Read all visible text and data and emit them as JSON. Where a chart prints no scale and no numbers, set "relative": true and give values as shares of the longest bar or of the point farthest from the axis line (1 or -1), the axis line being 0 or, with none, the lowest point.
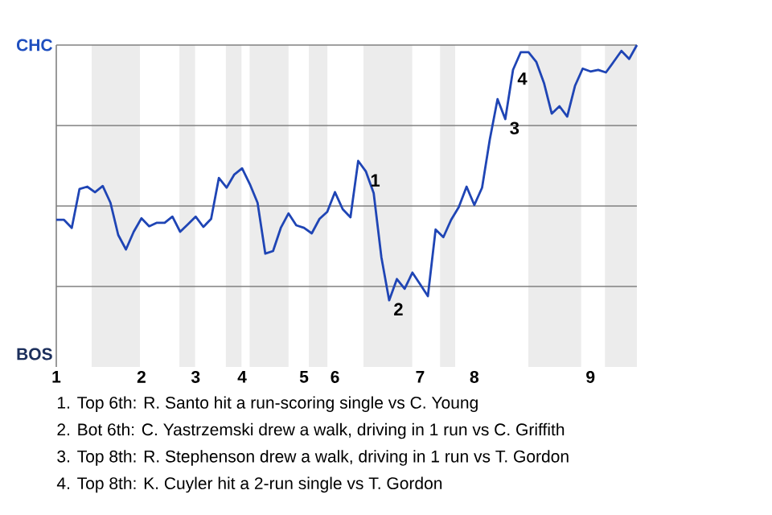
{
  "chart_data": {
    "type": "line",
    "relative": true,
    "categories": [
      "1",
      null,
      null,
      null,
      null,
      null,
      null,
      null,
      null,
      null,
      null,
      "2",
      null,
      null,
      null,
      null,
      null,
      null,
      "3",
      null,
      null,
      null,
      null,
      null,
      "4",
      null,
      null,
      null,
      null,
      null,
      null,
      null,
      "5",
      null,
      null,
      null,
      "6",
      null,
      null,
      null,
      null,
      null,
      null,
      null,
      null,
      null,
      null,
      "7",
      null,
      null,
      null,
      null,
      null,
      null,
      "8",
      null,
      null,
      null,
      null,
      null,
      null,
      null,
      null,
      null,
      null,
      null,
      null,
      null,
      null,
      "9",
      null,
      null,
      null,
      null,
      null,
      null
    ],
    "series": [
      {
        "color": "#1f45b5",
        "values": [
          0.457,
          0.457,
          0.432,
          0.553,
          0.56,
          0.543,
          0.562,
          0.51,
          0.41,
          0.365,
          0.42,
          0.462,
          0.437,
          0.448,
          0.448,
          0.467,
          0.42,
          0.443,
          0.467,
          0.435,
          0.46,
          0.587,
          0.557,
          0.598,
          0.617,
          0.568,
          0.51,
          0.352,
          0.36,
          0.432,
          0.477,
          0.44,
          0.432,
          0.415,
          0.46,
          0.482,
          0.543,
          0.49,
          0.465,
          0.64,
          0.607,
          0.54,
          0.34,
          0.207,
          0.273,
          0.243,
          0.293,
          0.257,
          0.22,
          0.427,
          0.403,
          0.457,
          0.497,
          0.56,
          0.503,
          0.557,
          0.707,
          0.832,
          0.77,
          0.923,
          0.978,
          0.978,
          0.948,
          0.882,
          0.787,
          0.81,
          0.778,
          0.873,
          0.927,
          0.918,
          0.923,
          0.915,
          0.948,
          0.982,
          0.957,
          1
        ]
      }
    ],
    "ref_lines": [
      {
        "axis": "y",
        "value": 0.25,
        "color": "#808080"
      },
      {
        "axis": "y",
        "value": 0.5,
        "color": "#808080"
      },
      {
        "axis": "y",
        "value": 0.75,
        "color": "#808080"
      },
      {
        "axis": "y",
        "value": 1,
        "color": "#808080"
      }
    ],
    "annotations": [
      "CHC",
      "BOS",
      {
        "text": "1",
        "y": 0.607
      },
      {
        "text": "2",
        "y": 0.207
      },
      {
        "text": "3",
        "y": 0.77
      },
      {
        "text": "4",
        "y": 0.923
      },
      "1. Top 6th: R. Santo hit a run-scoring single vs C. Young",
      "2. Bot 6th: C. Yastrzemski drew a walk, driving in 1 run vs C. Griffith",
      "3. Top 8th: R. Stephenson drew a walk, driving in 1 run vs T. Gordon",
      "4. Top 8th: K. Cuyler hit a 2-run single vs T. Gordon"
    ]
  }
}
